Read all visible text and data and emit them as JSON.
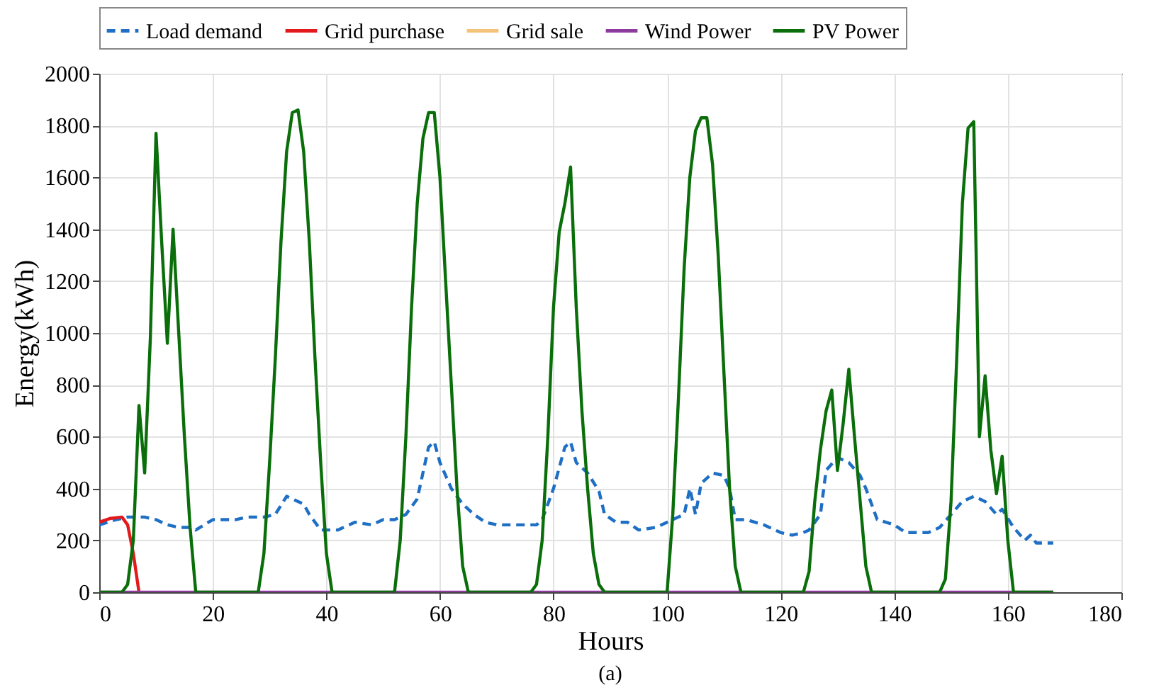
{
  "chart_data": {
    "type": "line",
    "xlabel": "Hours",
    "ylabel": "Energy(kWh)",
    "xlim": [
      0,
      180
    ],
    "xticks": [
      0,
      20,
      40,
      60,
      80,
      100,
      120,
      140,
      160,
      180
    ],
    "ylim": [
      0,
      2000
    ],
    "yticks": [
      0,
      200,
      400,
      600,
      800,
      1000,
      1200,
      1400,
      1600,
      1800,
      2000
    ],
    "grid": true,
    "legend": "top",
    "annotations": [
      "(a)"
    ],
    "series": [
      {
        "name": "Load demand",
        "color": "#1f6fc4",
        "line_style": "dashed",
        "x": [
          0,
          3,
          5,
          8,
          10,
          12,
          14,
          16,
          17,
          20,
          22,
          24,
          26,
          29,
          31,
          33,
          36,
          37,
          39,
          42,
          45,
          48,
          50,
          52,
          54,
          56,
          58,
          59,
          60,
          62,
          63,
          64,
          66,
          68,
          70,
          77,
          78,
          80,
          82,
          83,
          84,
          86,
          88,
          89,
          91,
          93,
          95,
          98,
          100,
          103,
          104,
          105,
          106,
          108,
          110,
          111,
          112,
          114,
          117,
          120,
          122,
          124,
          125,
          127,
          128,
          130,
          132,
          134,
          135,
          137,
          140,
          142,
          146,
          148,
          150,
          152,
          154,
          156,
          158,
          159,
          161,
          163,
          164,
          165,
          168
        ],
        "values": [
          260,
          280,
          290,
          290,
          280,
          260,
          250,
          250,
          240,
          280,
          280,
          280,
          290,
          290,
          300,
          370,
          340,
          300,
          240,
          240,
          270,
          260,
          280,
          280,
          300,
          360,
          560,
          580,
          500,
          400,
          370,
          340,
          300,
          270,
          260,
          260,
          280,
          400,
          560,
          580,
          500,
          460,
          390,
          300,
          270,
          270,
          240,
          250,
          270,
          300,
          400,
          300,
          420,
          460,
          450,
          400,
          280,
          280,
          260,
          230,
          220,
          230,
          240,
          300,
          470,
          520,
          500,
          450,
          400,
          280,
          260,
          230,
          230,
          250,
          300,
          350,
          370,
          350,
          300,
          320,
          250,
          200,
          220,
          190,
          190
        ]
      },
      {
        "name": "Grid purchase",
        "color": "#e31a1c",
        "x": [
          0,
          2,
          4,
          5,
          6,
          7
        ],
        "values": [
          270,
          285,
          290,
          260,
          150,
          0
        ]
      },
      {
        "name": "Grid sale",
        "color": "#f5c27a"
      },
      {
        "name": "Wind Power",
        "color": "#8e3b9e",
        "x": [
          0,
          168
        ],
        "values": [
          0,
          0
        ]
      },
      {
        "name": "PV Power",
        "color": "#0a6e0a",
        "x": [
          0,
          4,
          5,
          6,
          7,
          8,
          9,
          10,
          11,
          12,
          13,
          14,
          15,
          16,
          17,
          28,
          29,
          30,
          31,
          32,
          33,
          34,
          35,
          36,
          37,
          38,
          39,
          40,
          41,
          52,
          53,
          54,
          55,
          56,
          57,
          58,
          59,
          60,
          61,
          62,
          63,
          64,
          65,
          76,
          77,
          78,
          79,
          80,
          81,
          82,
          83,
          84,
          85,
          86,
          87,
          88,
          89,
          100,
          101,
          102,
          103,
          104,
          105,
          106,
          107,
          108,
          109,
          110,
          111,
          112,
          113,
          124,
          125,
          126,
          127,
          128,
          129,
          130,
          131,
          132,
          133,
          134,
          135,
          136,
          148,
          149,
          150,
          151,
          152,
          153,
          154,
          155,
          156,
          157,
          158,
          159,
          160,
          161,
          168
        ],
        "values": [
          0,
          0,
          30,
          200,
          720,
          460,
          980,
          1770,
          1350,
          960,
          1400,
          1000,
          600,
          250,
          0,
          0,
          150,
          500,
          900,
          1350,
          1700,
          1850,
          1860,
          1700,
          1350,
          900,
          500,
          150,
          0,
          0,
          200,
          600,
          1100,
          1500,
          1750,
          1850,
          1850,
          1600,
          1200,
          800,
          400,
          100,
          0,
          0,
          30,
          200,
          600,
          1100,
          1390,
          1500,
          1640,
          1100,
          700,
          400,
          150,
          30,
          0,
          0,
          300,
          750,
          1250,
          1600,
          1780,
          1830,
          1830,
          1650,
          1300,
          850,
          400,
          100,
          0,
          0,
          80,
          350,
          550,
          700,
          780,
          470,
          650,
          860,
          600,
          350,
          100,
          0,
          0,
          50,
          350,
          900,
          1500,
          1790,
          1815,
          600,
          835,
          550,
          380,
          525,
          200,
          0,
          0
        ]
      }
    ]
  }
}
